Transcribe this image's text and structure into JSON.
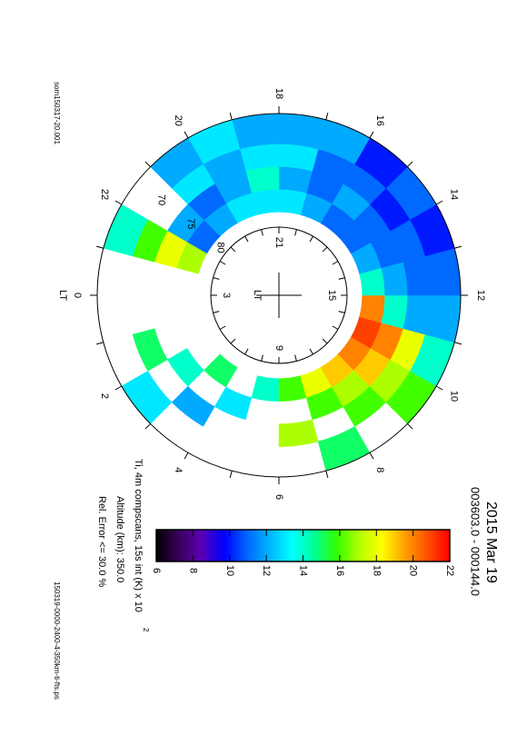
{
  "chart_data": {
    "type": "polar_heatmap",
    "title": "2015 Mar 19",
    "subtitle": "003603.0 - 000144.0",
    "colorbar_label": "Ti, 4m compscans, 15s int (K) x 10",
    "colorbar_label_exponent": "2",
    "altitude_text": "Altitude (km): 350.0",
    "error_text": "Rel. Error <= 30.0 %",
    "source_file": "som150317-20.001",
    "output_file": "150319-0000-2400-4-350km-ti-fts.ps",
    "theta_label": "LT",
    "theta_ticks": [
      0,
      2,
      4,
      6,
      8,
      10,
      12,
      14,
      16,
      18,
      20,
      22
    ],
    "inner_theta_label": "LT",
    "inner_theta_ticks": [
      3,
      9,
      15,
      21
    ],
    "rlim": [
      90,
      66
    ],
    "lat_ticks": [
      70,
      75,
      80
    ],
    "theta_bins": [
      0,
      1,
      2,
      3,
      4,
      5,
      6,
      7,
      8,
      9,
      10,
      11,
      12,
      13,
      14,
      15,
      16,
      17,
      18,
      19,
      20,
      21,
      22,
      23,
      24
    ],
    "lat_bins": [
      79,
      76,
      73,
      70,
      66
    ],
    "values": [
      [
        null,
        null,
        null,
        null
      ],
      [
        null,
        null,
        15,
        null
      ],
      [
        null,
        14,
        null,
        13
      ],
      [
        15,
        null,
        12,
        null
      ],
      [
        null,
        13,
        null,
        null
      ],
      [
        14,
        null,
        null,
        null
      ],
      [
        16,
        null,
        17,
        null
      ],
      [
        18,
        16,
        null,
        15
      ],
      [
        19,
        17,
        16,
        null
      ],
      [
        20,
        19,
        17,
        16
      ],
      [
        21,
        20,
        18,
        14
      ],
      [
        20,
        14,
        12,
        12
      ],
      [
        14,
        12,
        11,
        11
      ],
      [
        12,
        11,
        11,
        10
      ],
      [
        11,
        11,
        10,
        11
      ],
      [
        11,
        12,
        11,
        10
      ],
      [
        12,
        11,
        11,
        12
      ],
      [
        13,
        12,
        13,
        12
      ],
      [
        13,
        14,
        13,
        12
      ],
      [
        13,
        12,
        12,
        13
      ],
      [
        12,
        11,
        13,
        12
      ],
      [
        11,
        12,
        null,
        null
      ],
      [
        17,
        18,
        16,
        14
      ],
      [
        null,
        null,
        null,
        null
      ]
    ],
    "zlim": [
      6,
      22
    ],
    "zticks": [
      6,
      8,
      10,
      12,
      14,
      16,
      18,
      20,
      22
    ],
    "colormap": [
      "#000000",
      "#3a005a",
      "#5a00b4",
      "#0000ff",
      "#0064ff",
      "#00b4ff",
      "#00ffff",
      "#00ff96",
      "#32ff00",
      "#b4ff00",
      "#ffff00",
      "#ffa000",
      "#ff5000",
      "#ff0000"
    ]
  }
}
